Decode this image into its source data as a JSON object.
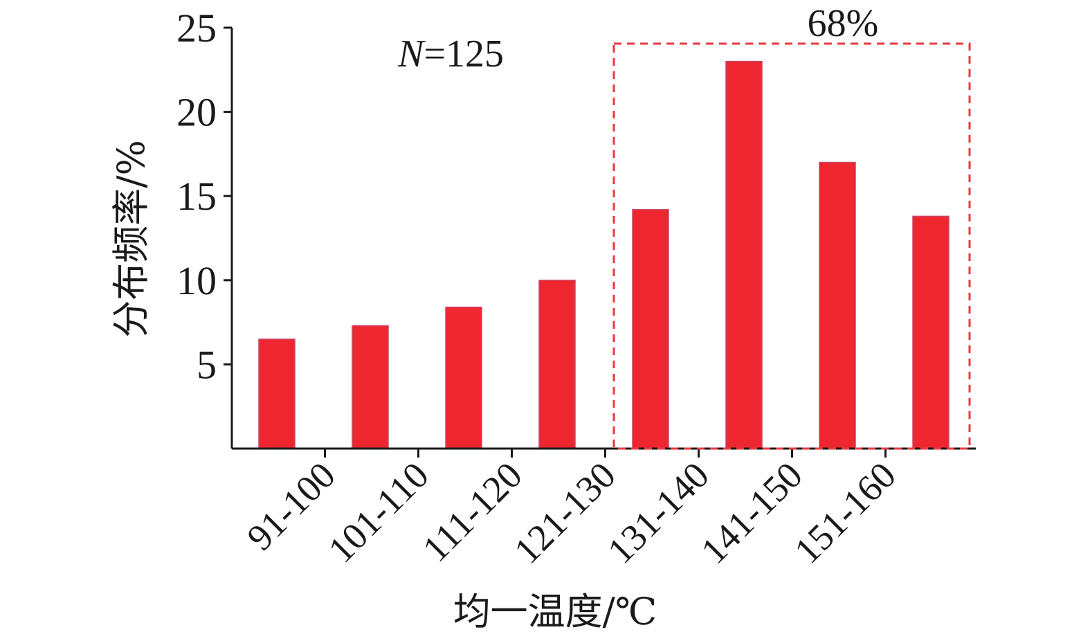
{
  "chart_data": {
    "type": "bar",
    "categories": [
      "",
      "91-100",
      "101-110",
      "111-120",
      "121-130",
      "131-140",
      "141-150",
      "151-160"
    ],
    "values": [
      6.5,
      7.3,
      8.4,
      10.0,
      14.2,
      23.0,
      17.0,
      13.8
    ],
    "xlabel": "均一温度/℃",
    "ylabel": "分布频率/%",
    "ylim": [
      0,
      25
    ],
    "yticks": [
      5,
      10,
      15,
      20,
      25
    ],
    "grid": false,
    "bar_color": "#ee2630",
    "highlight_color": "#e83a3f",
    "annotations": {
      "sample_var": "N",
      "sample_value": "=125",
      "highlight_label": "68%",
      "highlight_categories": [
        "121-130",
        "131-140",
        "141-150",
        "151-160"
      ]
    }
  }
}
